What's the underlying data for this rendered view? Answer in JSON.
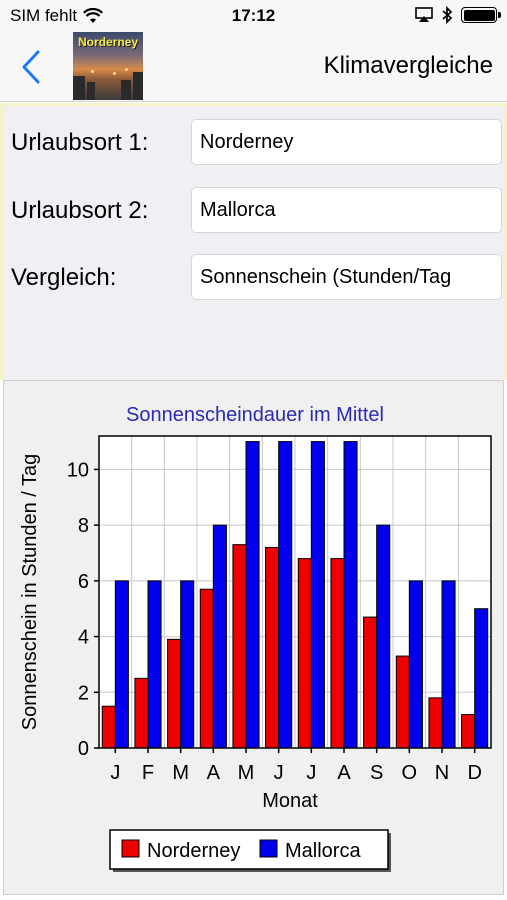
{
  "status_bar": {
    "carrier": "SIM fehlt",
    "time": "17:12"
  },
  "nav": {
    "title": "Klimavergleiche",
    "thumbnail_label": "Norderney"
  },
  "form": {
    "place1_label": "Urlaubsort 1:",
    "place1_value": "Norderney",
    "place2_label": "Urlaubsort 2:",
    "place2_value": "Mallorca",
    "compare_label": "Vergleich:",
    "compare_value": "Sonnenschein (Stunden/Tag"
  },
  "colors": {
    "series1": "#ee0000",
    "series2": "#0000ee",
    "title": "#2b2bb0"
  },
  "chart_data": {
    "type": "bar",
    "title": "Sonnenscheindauer im Mittel",
    "xlabel": "Monat",
    "ylabel": "Sonnenschein in Stunden / Tag",
    "categories": [
      "J",
      "F",
      "M",
      "A",
      "M",
      "J",
      "J",
      "A",
      "S",
      "O",
      "N",
      "D"
    ],
    "ylim": [
      0,
      11.2
    ],
    "yticks": [
      "0",
      "2",
      "4",
      "6",
      "8",
      "10"
    ],
    "grid": true,
    "legend_position": "bottom",
    "series": [
      {
        "name": "Norderney",
        "values": [
          1.5,
          2.5,
          3.9,
          5.7,
          7.3,
          7.2,
          6.8,
          6.8,
          4.7,
          3.3,
          1.8,
          1.2
        ]
      },
      {
        "name": "Mallorca",
        "values": [
          6,
          6,
          6,
          8,
          11,
          11,
          11,
          11,
          8,
          6,
          6,
          5
        ]
      }
    ]
  }
}
